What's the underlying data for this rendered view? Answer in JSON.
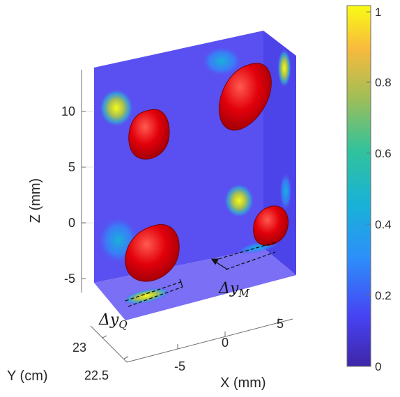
{
  "chart_data": {
    "type": "heatmap",
    "title": "",
    "xlabel": "X (mm)",
    "ylabel": "Y (cm)",
    "zlabel": "Z (mm)",
    "x_ticks": [
      "-5",
      "0",
      "5"
    ],
    "y_ticks": [
      "23",
      "22.5"
    ],
    "z_ticks": [
      "10",
      "5",
      "0",
      "-5"
    ],
    "xlim": [
      -8,
      8
    ],
    "zlim": [
      -8,
      13
    ],
    "colorbar": {
      "ticks": [
        "1",
        "0.8",
        "0.6",
        "0.4",
        "0.2",
        "0"
      ],
      "range": [
        0,
        1
      ],
      "colormap": "parula",
      "colors": [
        "#3e26a8",
        "#4743f3",
        "#2d8ffa",
        "#18b2d7",
        "#32c29b",
        "#a4be55",
        "#f8ba3d",
        "#f9fb15"
      ]
    },
    "objects": [
      {
        "name": "red-blob-top-left",
        "x": -4,
        "z": 6.5
      },
      {
        "name": "red-blob-top-right",
        "x": 4,
        "z": 10
      },
      {
        "name": "red-blob-bottom-left",
        "x": -5,
        "z": -2
      },
      {
        "name": "red-blob-bottom-right",
        "x": 5,
        "z": -0.5
      }
    ],
    "annotations": [
      {
        "base": "Δy",
        "sub": "Q"
      },
      {
        "base": "Δy",
        "sub": "M"
      }
    ],
    "surface_color": "#d9000a",
    "background_plane_color": "#5a4ff0"
  }
}
